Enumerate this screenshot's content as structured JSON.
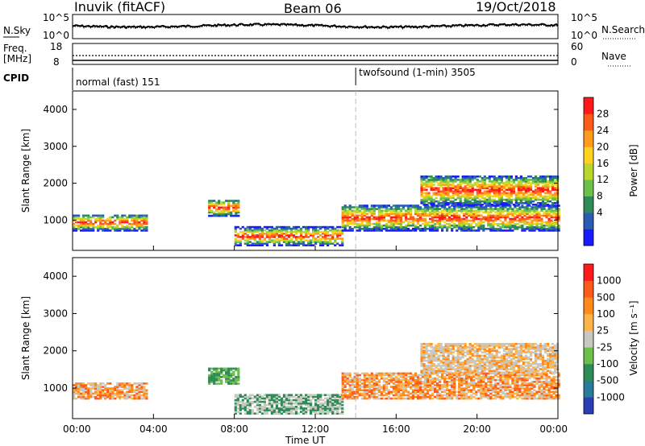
{
  "header": {
    "station": "Inuvik (fitACF)",
    "beam": "Beam 06",
    "date": "19/Oct/2018"
  },
  "top_panels": {
    "nsky_label": "N.Sky",
    "nsky_ticks": [
      "10^5",
      "10^0"
    ],
    "nsearch_label": "N.Search",
    "nsearch_ticks": [
      "10^5",
      "10^0"
    ],
    "freq_label": "Freq.",
    "freq_unit": "[MHz]",
    "freq_ticks": [
      "18",
      "8"
    ],
    "nave_label": "Nave",
    "nave_ticks": [
      "60",
      "0"
    ],
    "cpid_label": "CPID",
    "cpid_segments": [
      {
        "label": "normal (fast) 151",
        "start_hour": 0
      },
      {
        "label": "twofsound (1-min) 3505",
        "start_hour": 14
      }
    ]
  },
  "chart_data": [
    {
      "type": "heatmap",
      "name": "power",
      "ylabel": "Slant Range [km]",
      "ylim": [
        180,
        4500
      ],
      "yticks": [
        1000,
        2000,
        3000,
        4000
      ],
      "xlabel": "",
      "xlim_hours": [
        0,
        24
      ],
      "colorbar": {
        "label": "Power [dB]",
        "ticks": [
          "28",
          "24",
          "20",
          "16",
          "12",
          "8",
          "4"
        ],
        "colors": [
          "#1a1aff",
          "#2a5cb4",
          "#2e8b57",
          "#6cbf4a",
          "#b8d62e",
          "#ffd21f",
          "#ff9a1a",
          "#ff5a1a",
          "#ff1a1a"
        ]
      },
      "echo_regions": [
        {
          "from_hour": 0.0,
          "to_hour": 3.7,
          "range_km": [
            700,
            1150
          ]
        },
        {
          "from_hour": 6.7,
          "to_hour": 8.2,
          "range_km": [
            1100,
            1550
          ]
        },
        {
          "from_hour": 8.0,
          "to_hour": 13.3,
          "range_km": [
            300,
            800
          ]
        },
        {
          "from_hour": 13.3,
          "to_hour": 24.0,
          "range_km": [
            700,
            1400
          ]
        },
        {
          "from_hour": 17.2,
          "to_hour": 24.0,
          "range_km": [
            1400,
            2200
          ]
        }
      ]
    },
    {
      "type": "heatmap",
      "name": "velocity",
      "ylabel": "Slant Range [km]",
      "ylim": [
        180,
        4500
      ],
      "yticks": [
        1000,
        2000,
        3000,
        4000
      ],
      "xlabel": "Time UT",
      "xticks": [
        "00:00",
        "04:00",
        "08:00",
        "12:00",
        "16:00",
        "20:00",
        "00:00"
      ],
      "xlim_hours": [
        0,
        24
      ],
      "colorbar": {
        "label": "Velocity [m s⁻¹]",
        "ticks": [
          "1000",
          "500",
          "100",
          "25",
          "-25",
          "-100",
          "-500",
          "-1000"
        ],
        "colors": [
          "#2a3fb4",
          "#2a7a9c",
          "#2e8b57",
          "#6cbf4a",
          "#c8c8c0",
          "#ffb44a",
          "#ff8a1a",
          "#ff5a1a",
          "#ff1a1a"
        ]
      },
      "echo_regions": [
        {
          "from_hour": 0.0,
          "to_hour": 3.7,
          "range_km": [
            700,
            1150
          ]
        },
        {
          "from_hour": 6.7,
          "to_hour": 8.2,
          "range_km": [
            1100,
            1550
          ]
        },
        {
          "from_hour": 8.0,
          "to_hour": 13.3,
          "range_km": [
            300,
            800
          ]
        },
        {
          "from_hour": 13.3,
          "to_hour": 24.0,
          "range_km": [
            700,
            1400
          ]
        },
        {
          "from_hour": 17.2,
          "to_hour": 24.0,
          "range_km": [
            1400,
            2200
          ]
        }
      ]
    }
  ]
}
